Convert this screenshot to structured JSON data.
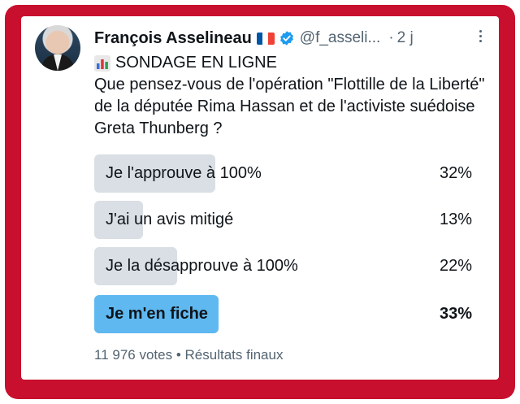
{
  "author": {
    "name": "François Asselineau",
    "handle": "@f_asseli...",
    "dot": "·",
    "time": "2 j"
  },
  "post": {
    "poll_title": "SONDAGE EN LIGNE",
    "question": "Que pensez-vous de l'opération \"Flottille de la Liberté\" de la députée Rima Hassan et de l'activiste suédoise Greta Thunberg  ?"
  },
  "poll": {
    "options": [
      {
        "label": "Je l'approuve à 100%",
        "percent_text": "32%",
        "percent": 32
      },
      {
        "label": "J'ai un avis mitigé",
        "percent_text": "13%",
        "percent": 13
      },
      {
        "label": "Je la désapprouve à 100%",
        "percent_text": "22%",
        "percent": 22
      },
      {
        "label": "Je m'en fiche",
        "percent_text": "33%",
        "percent": 33,
        "winner": true
      }
    ],
    "votes": "11 976 votes",
    "separator": "•",
    "status": "Résultats finaux"
  },
  "colors": {
    "frame": "#c8102e",
    "bar": "#d9dfe4",
    "winner_bar": "#5fb8f0",
    "verified": "#1d9bf0"
  },
  "icons": {
    "flag": "france-flag-icon",
    "verified": "verified-badge-icon",
    "more": "more-options-icon",
    "poll": "bar-chart-icon"
  }
}
